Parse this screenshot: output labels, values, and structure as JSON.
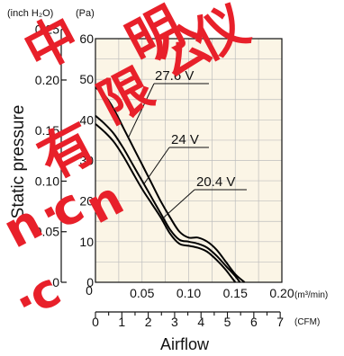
{
  "chart_data": {
    "type": "line",
    "ylabel": "Static pressure",
    "xlabel": "Airflow",
    "y_units": {
      "left": "(inch H₂O)",
      "right": "(Pa)"
    },
    "x_units": {
      "top": "(m³/min)",
      "bottom": "(CFM)"
    },
    "x_ticks_m3min": [
      "0",
      "0.05",
      "0.10",
      "0.15",
      "0.20"
    ],
    "x_ticks_cfm": [
      "0",
      "1",
      "2",
      "3",
      "4",
      "5",
      "6",
      "7"
    ],
    "y_ticks_pa": [
      "0",
      "10",
      "20",
      "30",
      "40",
      "50",
      "60"
    ],
    "y_ticks_inch": [
      "0",
      "0.05",
      "0.10",
      "0.15",
      "0.20",
      "0.25"
    ],
    "xlim_m3min": [
      0,
      0.2
    ],
    "ylim_pa": [
      0,
      60
    ],
    "grid": true,
    "series": [
      {
        "name": "27.6 V",
        "x": [
          0,
          0.01,
          0.02,
          0.03,
          0.04,
          0.05,
          0.06,
          0.07,
          0.08,
          0.09,
          0.1,
          0.11,
          0.12,
          0.13,
          0.14,
          0.15,
          0.16
        ],
        "y": [
          48,
          46,
          42.5,
          38,
          33.5,
          29,
          24.5,
          20,
          16,
          12.5,
          11,
          11,
          10,
          8,
          5,
          2,
          0
        ]
      },
      {
        "name": "24 V",
        "x": [
          0,
          0.01,
          0.02,
          0.03,
          0.04,
          0.05,
          0.06,
          0.07,
          0.08,
          0.09,
          0.1,
          0.11,
          0.12,
          0.13,
          0.14,
          0.15,
          0.155
        ],
        "y": [
          41,
          39,
          36.5,
          33,
          29,
          25,
          21,
          17,
          13,
          10.5,
          10,
          9.5,
          8.5,
          6.5,
          4,
          1.5,
          0
        ]
      },
      {
        "name": "20.4 V",
        "x": [
          0,
          0.01,
          0.02,
          0.03,
          0.04,
          0.05,
          0.06,
          0.07,
          0.08,
          0.09,
          0.1,
          0.11,
          0.12,
          0.13,
          0.14,
          0.15
        ],
        "y": [
          39,
          37,
          34.5,
          31,
          27,
          23,
          19.5,
          16,
          12,
          9.5,
          9,
          8.5,
          7.5,
          5.5,
          3,
          0
        ]
      }
    ]
  }
}
